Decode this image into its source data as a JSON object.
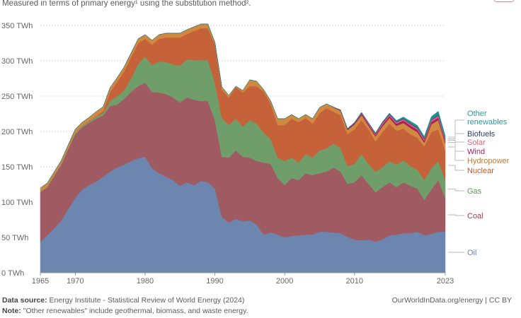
{
  "header": {
    "subtitle": "Measured in terms of primary energy¹ using the substitution method²."
  },
  "footer": {
    "source_label": "Data source:",
    "source_text": "Energy Institute - Statistical Review of World Energy (2024)",
    "note_label": "Note:",
    "note_text": "\"Other renewables\" include geothermal, biomass, and waste energy.",
    "credit": "OurWorldInData.org/energy | CC BY"
  },
  "chart_data": {
    "type": "area",
    "stacked": true,
    "title": "",
    "xlabel": "",
    "ylabel": "",
    "ylim": [
      0,
      350
    ],
    "xlim": [
      1965,
      2023
    ],
    "grid": "horizontal dotted",
    "legend_placement": "right (inline labels)",
    "y_ticks": [
      "0 TWh",
      "50 TWh",
      "100 TWh",
      "150 TWh",
      "200 TWh",
      "250 TWh",
      "300 TWh",
      "350 TWh"
    ],
    "y_tick_values": [
      0,
      50,
      100,
      150,
      200,
      250,
      300,
      350
    ],
    "x_ticks": [
      "1965",
      "1970",
      "1980",
      "1990",
      "2000",
      "2010",
      "2023"
    ],
    "x_start": 1965,
    "series": [
      {
        "name": "Oil",
        "color": "#6d86b0",
        "label_color": "#6a83b0",
        "values": [
          44,
          53,
          63,
          74,
          90,
          106,
          118,
          124,
          129,
          136,
          143,
          149,
          153,
          158,
          162,
          164,
          148,
          141,
          136,
          131,
          123,
          128,
          124,
          130,
          128,
          119,
          79,
          71,
          76,
          73,
          74,
          68,
          54,
          57,
          54,
          50,
          52,
          53,
          54,
          54,
          58,
          58,
          57,
          56,
          51,
          47,
          46,
          47,
          44,
          47,
          53,
          54,
          56,
          56,
          58,
          53,
          55,
          58,
          58
        ]
      },
      {
        "name": "Coal",
        "color": "#a05a62",
        "label_color": "#a04048",
        "values": [
          70,
          68,
          74,
          79,
          85,
          90,
          88,
          88,
          89,
          87,
          93,
          89,
          93,
          98,
          102,
          105,
          108,
          114,
          117,
          117,
          118,
          120,
          121,
          113,
          115,
          97,
          85,
          92,
          97,
          91,
          89,
          90,
          102,
          97,
          80,
          74,
          82,
          78,
          87,
          84,
          83,
          85,
          92,
          87,
          75,
          81,
          92,
          79,
          70,
          74,
          75,
          67,
          72,
          67,
          61,
          50,
          63,
          73,
          48
        ]
      },
      {
        "name": "Gas",
        "color": "#6f9e6a",
        "label_color": "#5c9a52",
        "values": [
          1,
          1,
          1,
          1,
          1,
          2,
          2,
          2,
          3,
          3,
          7,
          12,
          12,
          19,
          31,
          37,
          38,
          44,
          45,
          47,
          52,
          54,
          56,
          58,
          58,
          53,
          55,
          46,
          45,
          43,
          53,
          53,
          42,
          35,
          29,
          34,
          29,
          25,
          27,
          25,
          32,
          33,
          34,
          33,
          25,
          26,
          30,
          28,
          29,
          28,
          30,
          32,
          31,
          28,
          27,
          28,
          30,
          27,
          25
        ]
      },
      {
        "name": "Nuclear",
        "color": "#c6623a",
        "label_color": "#c0582a",
        "values": [
          0,
          0,
          0,
          0,
          0,
          0,
          0,
          1,
          1,
          3,
          13,
          20,
          27,
          30,
          30,
          25,
          29,
          32,
          35,
          38,
          40,
          36,
          41,
          45,
          45,
          54,
          40,
          39,
          45,
          48,
          48,
          53,
          58,
          50,
          46,
          51,
          55,
          57,
          51,
          48,
          53,
          57,
          45,
          47,
          45,
          49,
          48,
          49,
          43,
          50,
          53,
          48,
          45,
          45,
          45,
          48,
          51,
          45,
          42
        ]
      },
      {
        "name": "Hydropower",
        "color": "#d0893e",
        "label_color": "#c97a30",
        "values": [
          5,
          5,
          5,
          5,
          5,
          5,
          5,
          5,
          6,
          6,
          6,
          6,
          6,
          6,
          6,
          6,
          6,
          6,
          6,
          6,
          6,
          6,
          6,
          6,
          6,
          3,
          4,
          3,
          1,
          3,
          9,
          7,
          3,
          4,
          9,
          9,
          6,
          5,
          5,
          7,
          8,
          6,
          6,
          6,
          6,
          7,
          7,
          5,
          7,
          8,
          8,
          7,
          8,
          9,
          8,
          5,
          11,
          13,
          10
        ]
      },
      {
        "name": "Wind",
        "color": "#a8205e",
        "label_color": "#a5226a",
        "values": [
          0,
          0,
          0,
          0,
          0,
          0,
          0,
          0,
          0,
          0,
          0,
          0,
          0,
          0,
          0,
          0,
          0,
          0,
          0,
          0,
          0,
          0,
          0,
          0,
          0,
          0,
          0,
          0,
          0,
          0,
          0,
          0,
          0,
          0,
          0,
          0,
          0,
          0,
          0,
          0,
          0,
          0,
          0.5,
          1,
          1,
          1.5,
          2,
          2,
          2,
          2.5,
          3,
          3,
          3.5,
          3.5,
          3.5,
          3,
          3.5,
          3.5,
          3
        ]
      },
      {
        "name": "Solar",
        "color": "#e35d7c",
        "label_color": "#e0607a",
        "values": [
          0,
          0,
          0,
          0,
          0,
          0,
          0,
          0,
          0,
          0,
          0,
          0,
          0,
          0,
          0,
          0,
          0,
          0,
          0,
          0,
          0,
          0,
          0,
          0,
          0,
          0,
          0,
          0,
          0,
          0,
          0,
          0,
          0,
          0,
          0,
          0,
          0,
          0,
          0,
          0,
          0,
          0,
          0,
          0,
          0,
          0.2,
          1,
          1.5,
          1.5,
          2,
          2,
          2,
          2,
          2,
          2,
          2,
          2.5,
          3,
          3
        ]
      },
      {
        "name": "Biofuels",
        "color": "#2c4a7e",
        "label_color": "#2a3d6b",
        "values": [
          0,
          0,
          0,
          0,
          0,
          0,
          0,
          0,
          0,
          0,
          0,
          0,
          0,
          0,
          0,
          0,
          0,
          0,
          0,
          0,
          0,
          0,
          0,
          0,
          0,
          0,
          0,
          0,
          0,
          0,
          0,
          0,
          0,
          0,
          0,
          0,
          0,
          0,
          0,
          0,
          0,
          0,
          0,
          0.5,
          1,
          1,
          1,
          1,
          1,
          1,
          1,
          1,
          1,
          1,
          1,
          1,
          1,
          1,
          1
        ]
      },
      {
        "name": "Other renewables",
        "color": "#1f918d",
        "label_color": "#2b9a95",
        "values": [
          0,
          0,
          0,
          0,
          0,
          0,
          0,
          0,
          0,
          0,
          0,
          0,
          0,
          0,
          0,
          0,
          0,
          0,
          0,
          0,
          0,
          0,
          0,
          0,
          0,
          0,
          0,
          0,
          0,
          0,
          0,
          0,
          0,
          0,
          0,
          0,
          0,
          0,
          0,
          0,
          0,
          0,
          0,
          0,
          0,
          0,
          0,
          0,
          0.5,
          1,
          1,
          1.5,
          2,
          3,
          3,
          3,
          4,
          5,
          4
        ]
      }
    ]
  }
}
